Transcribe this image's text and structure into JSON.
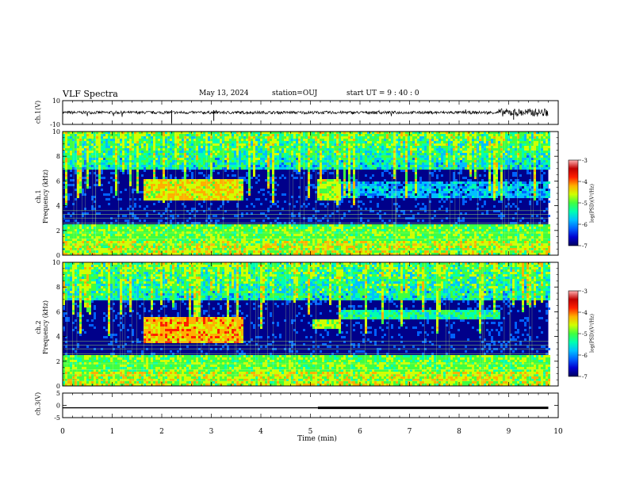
{
  "header": {
    "title": "VLF Spectra",
    "date": "May 13, 2024",
    "station": "station=OUJ",
    "start_time": "start UT =  9 : 40 : 0"
  },
  "colors": {
    "axis": "#000000",
    "colormap": [
      "#000060",
      "#0000d0",
      "#0060ff",
      "#00c0ff",
      "#00ffb0",
      "#40ff40",
      "#d0ff00",
      "#ffb000",
      "#ff2000",
      "#c00000",
      "#ffb0b0"
    ]
  },
  "colorbars": [
    {
      "label": "log(PSD)(V²/Hz)",
      "ticks": [
        "-3",
        "-4",
        "-5",
        "-6",
        "-7"
      ]
    },
    {
      "label": "log(PSD)(V²/Hz)",
      "ticks": [
        "-3",
        "-4",
        "-5",
        "-6",
        "-7"
      ]
    }
  ],
  "chart_data": [
    {
      "type": "line",
      "name": "ch1-waveform",
      "ylabel": "ch.1(V)",
      "ylim": [
        -10,
        10
      ],
      "ytick_labels": [
        "10",
        "-10"
      ],
      "xlim": [
        0,
        10
      ]
    },
    {
      "type": "heatmap",
      "name": "ch1-spectrogram",
      "ylabel": "ch.1\nFrequency (kHz)",
      "ylim": [
        0,
        10
      ],
      "ytick_labels": [
        "10",
        "8",
        "6",
        "4",
        "2",
        "0"
      ],
      "xlim": [
        0,
        10
      ],
      "data_end_min": 9.8,
      "colorbar_range": [
        -7,
        -3
      ],
      "features": [
        {
          "t": [
            1.6,
            3.6
          ],
          "f": [
            4.5,
            6.2
          ],
          "level": -4.5
        },
        {
          "t": [
            5.1,
            5.6
          ],
          "f": [
            4.5,
            6.2
          ],
          "level": -4.8
        },
        {
          "t": [
            5.6,
            9.8
          ],
          "f": [
            4.8,
            6.0
          ],
          "level": -5.8
        },
        {
          "t": [
            0,
            9.8
          ],
          "f": [
            0,
            2.5
          ],
          "level": -5.0
        }
      ]
    },
    {
      "type": "heatmap",
      "name": "ch2-spectrogram",
      "ylabel": "ch.2\nFrequency (kHz)",
      "ylim": [
        0,
        10
      ],
      "ytick_labels": [
        "10",
        "8",
        "6",
        "4",
        "2",
        "0"
      ],
      "xlim": [
        0,
        10
      ],
      "data_end_min": 9.8,
      "colorbar_range": [
        -7,
        -3
      ],
      "features": [
        {
          "t": [
            1.6,
            3.6
          ],
          "f": [
            3.5,
            5.6
          ],
          "level": -4.3
        },
        {
          "t": [
            5.0,
            5.6
          ],
          "f": [
            4.8,
            5.4
          ],
          "level": -4.8
        },
        {
          "t": [
            5.6,
            8.8
          ],
          "f": [
            5.5,
            6.3
          ],
          "level": -5.3
        },
        {
          "t": [
            0,
            9.8
          ],
          "f": [
            0,
            2.6
          ],
          "level": -5.0
        }
      ]
    },
    {
      "type": "line",
      "name": "ch3-voltage",
      "ylabel": "ch.3(V)",
      "ylim": [
        -5,
        5
      ],
      "ytick_labels": [
        "5",
        "0",
        "-5"
      ],
      "xlim": [
        0,
        10
      ],
      "x": [
        0,
        5.15,
        5.15,
        9.8
      ],
      "y": [
        -1.0,
        -1.0,
        -1.0,
        -1.0
      ],
      "thick_from": 5.15
    }
  ],
  "xaxis": {
    "label": "Time (min)",
    "ticks": [
      "0",
      "1",
      "2",
      "3",
      "4",
      "5",
      "6",
      "7",
      "8",
      "9",
      "10"
    ]
  }
}
